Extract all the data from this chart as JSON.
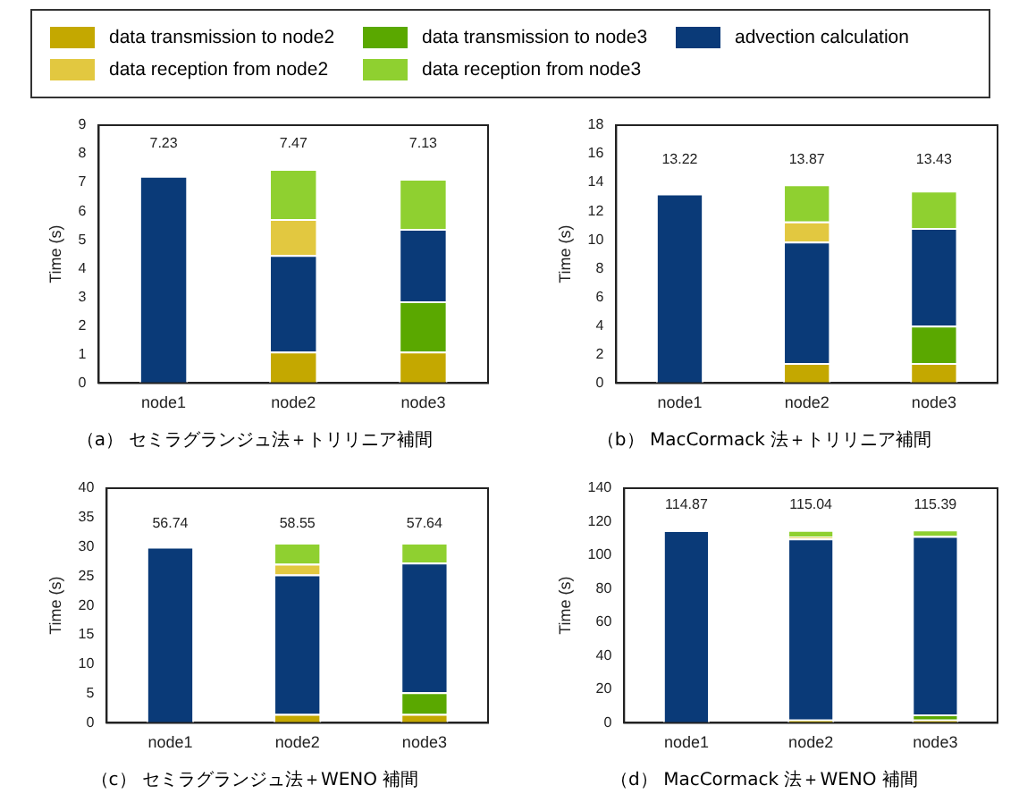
{
  "chart_data": [
    {
      "type": "bar",
      "stacked": true,
      "title": "（a） セミラグランジュ法＋トリリニア補間",
      "ylabel": "Time (s)",
      "legend": "top",
      "categories": [
        "node1",
        "node2",
        "node3"
      ],
      "ylim": [
        0,
        9
      ],
      "yticks": [
        0,
        1,
        2,
        3,
        4,
        5,
        6,
        7,
        8,
        9
      ],
      "totals": [
        "7.23",
        "7.47",
        "7.13"
      ],
      "series": [
        {
          "name": "data transmission to node2",
          "color": "#c4a800",
          "values": [
            null,
            1.1,
            1.1
          ]
        },
        {
          "name": "data transmission to node3",
          "color": "#5aa800",
          "values": [
            null,
            null,
            1.75
          ]
        },
        {
          "name": "advection calculation",
          "color": "#0a3a78",
          "values": [
            7.23,
            3.37,
            2.53
          ]
        },
        {
          "name": "data reception from node2",
          "color": "#e2c840",
          "values": [
            null,
            1.25,
            null
          ]
        },
        {
          "name": "data reception from node3",
          "color": "#8fd030",
          "values": [
            null,
            1.75,
            1.75
          ]
        }
      ]
    },
    {
      "type": "bar",
      "stacked": true,
      "title": "（b） MacCormack 法＋トリリニア補間",
      "ylabel": "Time (s)",
      "categories": [
        "node1",
        "node2",
        "node3"
      ],
      "ylim": [
        0,
        18
      ],
      "yticks": [
        0,
        2,
        4,
        6,
        8,
        10,
        12,
        14,
        16,
        18
      ],
      "totals": [
        "13.22",
        "13.87",
        "13.43"
      ],
      "series": [
        {
          "color": "#c4a800",
          "values": [
            null,
            1.4,
            1.4
          ]
        },
        {
          "color": "#5aa800",
          "values": [
            null,
            null,
            2.6
          ]
        },
        {
          "color": "#0a3a78",
          "values": [
            13.22,
            8.47,
            6.83
          ]
        },
        {
          "color": "#e2c840",
          "values": [
            null,
            1.4,
            null
          ]
        },
        {
          "color": "#8fd030",
          "values": [
            null,
            2.6,
            2.6
          ]
        }
      ]
    },
    {
      "type": "bar",
      "stacked": true,
      "title": "（c） セミラグランジュ法＋WENO 補間",
      "ylabel": "Time (s)",
      "categories": [
        "node1",
        "node2",
        "node3"
      ],
      "ylim": [
        0,
        40
      ],
      "yticks": [
        0,
        5,
        10,
        15,
        20,
        25,
        30,
        35,
        40
      ],
      "annotations": [
        "56.74",
        "58.55",
        "57.64"
      ],
      "series": [
        {
          "color": "#c4a800",
          "values": [
            null,
            1.5,
            1.5
          ]
        },
        {
          "color": "#5aa800",
          "values": [
            null,
            null,
            3.7
          ]
        },
        {
          "color": "#0a3a78",
          "values": [
            30,
            23.8,
            22.1
          ]
        },
        {
          "color": "#e2c840",
          "values": [
            null,
            1.8,
            null
          ]
        },
        {
          "color": "#8fd030",
          "values": [
            null,
            3.6,
            3.4
          ]
        }
      ]
    },
    {
      "type": "bar",
      "stacked": true,
      "title": "（d） MacCormack 法＋WENO 補間",
      "ylabel": "Time (s)",
      "categories": [
        "node1",
        "node2",
        "node3"
      ],
      "ylim": [
        0,
        140
      ],
      "yticks": [
        0,
        20,
        40,
        60,
        80,
        100,
        120,
        140
      ],
      "totals": [
        "114.87",
        "115.04",
        "115.39"
      ],
      "series": [
        {
          "color": "#c4a800",
          "values": [
            null,
            2,
            2
          ]
        },
        {
          "color": "#5aa800",
          "values": [
            null,
            null,
            3
          ]
        },
        {
          "color": "#0a3a78",
          "values": [
            114.87,
            108.04,
            106.39
          ]
        },
        {
          "color": "#e2c840",
          "values": [
            null,
            1,
            null
          ]
        },
        {
          "color": "#8fd030",
          "values": [
            null,
            4,
            4
          ]
        }
      ]
    }
  ]
}
